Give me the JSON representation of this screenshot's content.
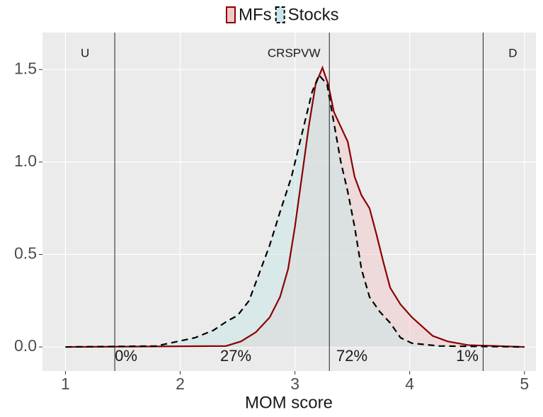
{
  "chart_data": {
    "type": "density",
    "x_label": "MOM score",
    "xlim": [
      0.8,
      5.1
    ],
    "ylim": [
      -0.13,
      1.7
    ],
    "xticks": [
      1,
      2,
      3,
      4,
      5
    ],
    "yticks": [
      {
        "value": 0,
        "label": "0.0"
      },
      {
        "value": 0.5,
        "label": "0.5"
      },
      {
        "value": 1,
        "label": "1.0"
      },
      {
        "value": 1.5,
        "label": "1.5"
      }
    ],
    "grid": true,
    "legend_position": "top",
    "series": [
      {
        "name": "MFs",
        "color": "#8b0000",
        "fill": "#f2c9c9",
        "linestyle": "solid",
        "x": [
          1,
          2.4,
          2.53,
          2.66,
          2.78,
          2.87,
          2.94,
          3.0,
          3.06,
          3.12,
          3.18,
          3.24,
          3.29,
          3.34,
          3.4,
          3.46,
          3.52,
          3.58,
          3.65,
          3.71,
          3.77,
          3.83,
          3.92,
          4.02,
          4.11,
          4.2,
          4.33,
          4.51,
          4.76,
          5
        ],
        "values": [
          0,
          0.005,
          0.03,
          0.08,
          0.16,
          0.27,
          0.42,
          0.65,
          0.92,
          1.19,
          1.42,
          1.51,
          1.42,
          1.27,
          1.19,
          1.11,
          0.92,
          0.82,
          0.75,
          0.61,
          0.46,
          0.32,
          0.23,
          0.16,
          0.11,
          0.06,
          0.03,
          0.01,
          0.005,
          0
        ]
      },
      {
        "name": "Stocks",
        "color": "#000000",
        "fill": "#c8e6e8",
        "linestyle": "dashed",
        "x": [
          1,
          1.79,
          1.98,
          2.13,
          2.29,
          2.41,
          2.5,
          2.6,
          2.69,
          2.78,
          2.87,
          2.97,
          3.06,
          3.15,
          3.21,
          3.28,
          3.34,
          3.4,
          3.46,
          3.52,
          3.58,
          3.65,
          3.74,
          3.83,
          3.92,
          4.02,
          4.26,
          5
        ],
        "values": [
          0,
          0.005,
          0.03,
          0.05,
          0.09,
          0.14,
          0.17,
          0.25,
          0.4,
          0.55,
          0.73,
          0.92,
          1.15,
          1.38,
          1.47,
          1.42,
          1.21,
          1.0,
          0.84,
          0.65,
          0.42,
          0.27,
          0.19,
          0.13,
          0.05,
          0.02,
          0.005,
          0
        ]
      }
    ],
    "vlines": [
      {
        "x": 1.43,
        "label": "U"
      },
      {
        "x": 3.3,
        "label": "CRSPVW"
      },
      {
        "x": 4.64,
        "label": "D"
      }
    ],
    "annotations": [
      "0%",
      "27%",
      "72%",
      "1%"
    ]
  }
}
